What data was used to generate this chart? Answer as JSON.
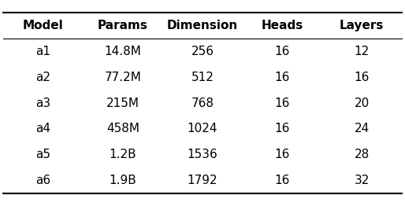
{
  "columns": [
    "Model",
    "Params",
    "Dimension",
    "Heads",
    "Layers"
  ],
  "rows": [
    [
      "a1",
      "14.8M",
      "256",
      "16",
      "12"
    ],
    [
      "a2",
      "77.2M",
      "512",
      "16",
      "16"
    ],
    [
      "a3",
      "215M",
      "768",
      "16",
      "20"
    ],
    [
      "a4",
      "458M",
      "1024",
      "16",
      "24"
    ],
    [
      "a5",
      "1.2B",
      "1536",
      "16",
      "28"
    ],
    [
      "a6",
      "1.9B",
      "1792",
      "16",
      "32"
    ]
  ],
  "figsize": [
    5.14,
    2.62
  ],
  "dpi": 100,
  "font_size": 11,
  "header_font_size": 11,
  "background_color": "#ffffff",
  "edge_color": "#000000",
  "text_color": "#000000",
  "header_font_weight": "bold",
  "lw_thick": 1.5,
  "lw_thin": 0.8
}
